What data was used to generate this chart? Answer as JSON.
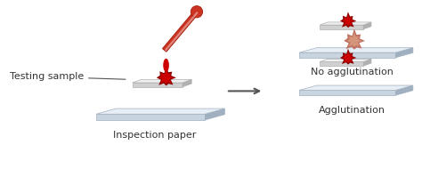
{
  "bg_color": "#f5f5f5",
  "plate_color_top": "#e8eef5",
  "plate_color_side": "#c8d4e0",
  "plate_color_edge": "#a0b0c0",
  "paper_top": "#f0f0f0",
  "paper_side": "#d0d0d0",
  "paper_edge": "#b0b0b0",
  "blood_dark": "#8b0000",
  "blood_medium": "#cc0000",
  "blood_light": "#e05050",
  "blood_pale": "#c07060",
  "blood_very_pale": "#d4957a",
  "dropper_body": "#c0392b",
  "dropper_tip": "#c0392b",
  "arrow_color": "#555555",
  "label_color": "#333333",
  "title_left": "Inspection paper",
  "label_testing": "Testing sample",
  "label_agglutination": "Agglutination",
  "label_no_agglutination": "No agglutination",
  "font_size": 8,
  "font_size_small": 7
}
